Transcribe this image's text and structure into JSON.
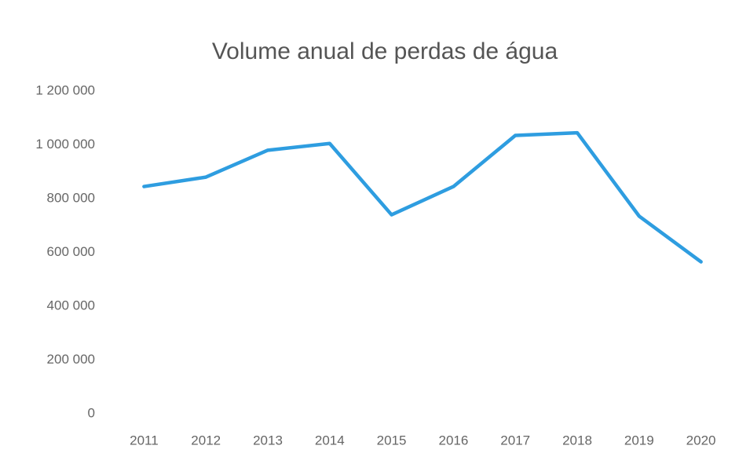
{
  "chart_data": {
    "type": "line",
    "title": "Volume anual de perdas de água",
    "categories": [
      "2011",
      "2012",
      "2013",
      "2014",
      "2015",
      "2016",
      "2017",
      "2018",
      "2019",
      "2020"
    ],
    "series": [
      {
        "name": "Volume anual de perdas de água",
        "color": "#2e9de0",
        "values": [
          845000,
          880000,
          980000,
          1005000,
          740000,
          845000,
          1035000,
          1045000,
          735000,
          565000
        ]
      }
    ],
    "ylim": [
      0,
      1200000
    ],
    "yticks": [
      0,
      {
        "value": 200000,
        "label": "200 000"
      },
      {
        "value": 400000,
        "label": "400 000"
      },
      {
        "value": 600000,
        "label": "600 000"
      },
      {
        "value": 800000,
        "label": "800 000"
      },
      {
        "value": 1000000,
        "label": "1 000 000"
      },
      {
        "value": 1200000,
        "label": "1 200 000"
      }
    ],
    "grid": false
  }
}
